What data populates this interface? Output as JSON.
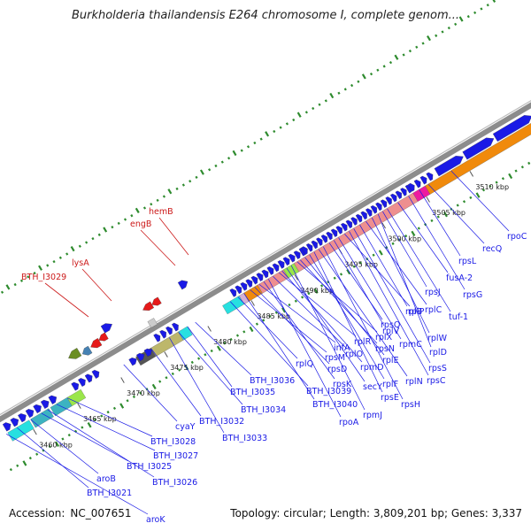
{
  "title": "Burkholderia thailandensis E264 chromosome I, complete genom...",
  "footer": {
    "accession_label": "Accession:",
    "accession": "NC_007651",
    "topology_label": "Topology:",
    "topology": "circular",
    "length_label": "Length:",
    "length": "3,809,201 bp",
    "genes_label": "Genes:",
    "genes": "3,337"
  },
  "colors": {
    "forward_cds": "#1a1ae6",
    "reverse_cds": "#e61a1a",
    "backbone": "#8c8c8c",
    "gc_ticks": "#2e8b2e",
    "label_blue": "#1a1ae6",
    "label_red": "#cc1a1a",
    "rRNA_pink": "#ee8f8f",
    "orange": "#f08a0c",
    "olive": "#6b8e23",
    "khaki": "#bdb76b",
    "cyan": "#27e0e0",
    "teal": "#3cb3c1",
    "lime": "#9ae64a",
    "magenta": "#ee1ba0"
  },
  "icons": [
    "gene-arrow-icon"
  ],
  "scale_labels": [
    "3460 kbp",
    "3465 kbp",
    "3470 kbp",
    "3475 kbp",
    "3480 kbp",
    "3485 kbp",
    "3490 kbp",
    "3495 kbp",
    "3500 kbp",
    "3505 kbp",
    "3510 kbp"
  ],
  "gene_labels": {
    "red": [
      "BTH_I3029",
      "lysA",
      "engB",
      "hemB"
    ],
    "blue": [
      "aroK",
      "BTH_I3021",
      "aroB",
      "BTH_I3025",
      "BTH_I3026",
      "BTH_I3027",
      "BTH_I3028",
      "cyaY",
      "BTH_I3032",
      "BTH_I3033",
      "BTH_I3034",
      "BTH_I3035",
      "BTH_I3036",
      "rplQ",
      "BTH_I3039",
      "BTH_I3040",
      "rpsD",
      "rpsM",
      "infA",
      "rpsK",
      "rpoA",
      "rplO",
      "rplR",
      "rpmD",
      "secY",
      "rpmJ",
      "rplX",
      "rpsN",
      "rplE",
      "rplF",
      "rpsE",
      "rplN",
      "rpsH",
      "rpsQ",
      "rplV",
      "rpmC",
      "rplP",
      "rpsC",
      "rpsS",
      "rplB",
      "rplC",
      "rplW",
      "rplD",
      "rpsJ",
      "tuf-1",
      "fusA-2",
      "rpsG",
      "rpsL",
      "recQ",
      "rpoC"
    ]
  }
}
